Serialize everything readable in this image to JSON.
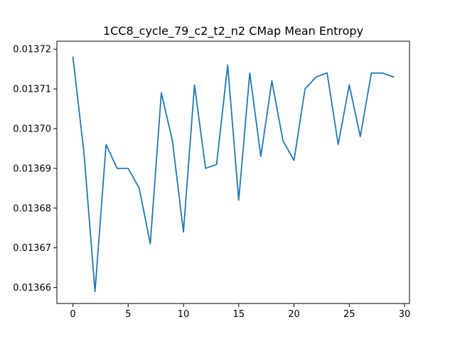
{
  "chart_data": {
    "type": "line",
    "title": "1CC8_cycle_79_c2_t2_n2 CMap Mean Entropy",
    "xlabel": "",
    "ylabel": "",
    "xlim": [
      -1.45,
      30.45
    ],
    "ylim": [
      0.013656,
      0.013722
    ],
    "x_ticks": [
      0,
      5,
      10,
      15,
      20,
      25,
      30
    ],
    "x_tick_labels": [
      "0",
      "5",
      "10",
      "15",
      "20",
      "25",
      "30"
    ],
    "y_ticks": [
      0.01366,
      0.01367,
      0.01368,
      0.01369,
      0.0137,
      0.01371,
      0.01372
    ],
    "y_tick_labels": [
      "0.01366",
      "0.01367",
      "0.01368",
      "0.01369",
      "0.01370",
      "0.01371",
      "0.01372"
    ],
    "grid": false,
    "legend": "none",
    "series": [
      {
        "color": "#1f77b4",
        "x": [
          0,
          1,
          2,
          3,
          4,
          5,
          6,
          7,
          8,
          9,
          10,
          11,
          12,
          13,
          14,
          15,
          16,
          17,
          18,
          19,
          20,
          21,
          22,
          23,
          24,
          25,
          26,
          27,
          28,
          29
        ],
        "y": [
          0.013718,
          0.013694,
          0.013659,
          0.013696,
          0.01369,
          0.01369,
          0.013685,
          0.013671,
          0.013709,
          0.013697,
          0.013674,
          0.013711,
          0.01369,
          0.013691,
          0.013716,
          0.013682,
          0.013714,
          0.013693,
          0.013712,
          0.013697,
          0.013692,
          0.01371,
          0.013713,
          0.013714,
          0.013696,
          0.013711,
          0.013698,
          0.013714,
          0.013714,
          0.013713
        ]
      }
    ]
  }
}
